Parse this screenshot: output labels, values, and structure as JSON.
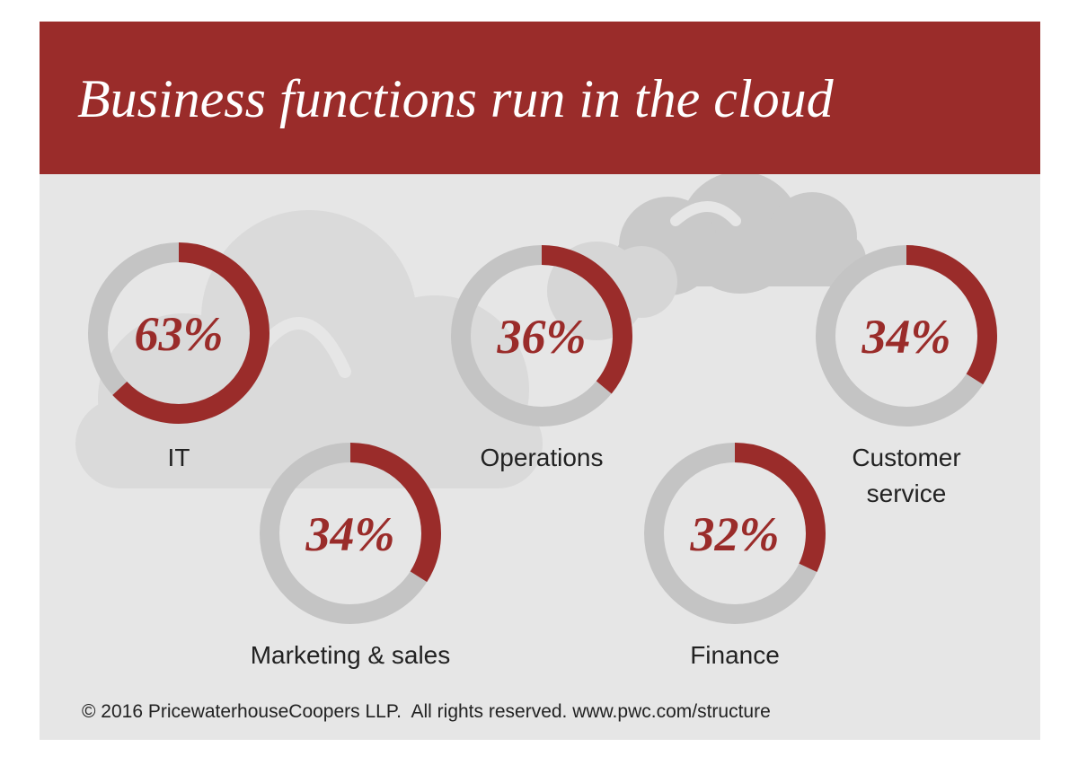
{
  "title": "Business functions run in the cloud",
  "footer": "© 2016 PricewaterhouseCoopers LLP.  All rights reserved. www.pwc.com/structure",
  "colors": {
    "accent": "#9a2c2a",
    "ring_track": "#c4c4c4",
    "background": "#e6e6e6",
    "cloud": "#d6d6d6"
  },
  "chart_data": {
    "type": "donut",
    "unit": "%",
    "categories": [
      "IT",
      "Operations",
      "Customer\nservice",
      "Marketing & sales",
      "Finance"
    ],
    "values": [
      63,
      36,
      34,
      34,
      32
    ],
    "value_labels": [
      "63%",
      "36%",
      "34%",
      "34%",
      "32%"
    ],
    "max": 100
  }
}
